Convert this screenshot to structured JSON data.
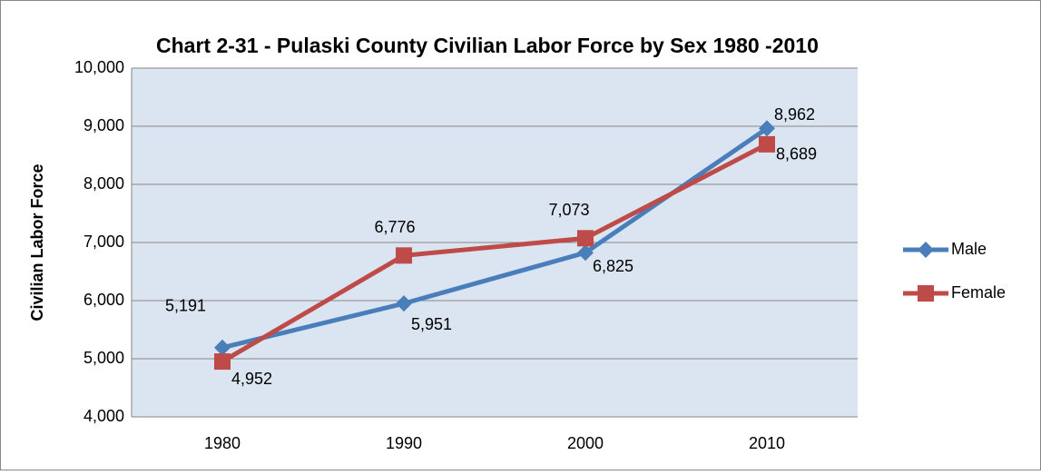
{
  "chart_data": {
    "type": "line",
    "title": "Chart 2-31 - Pulaski County Civilian Labor Force by Sex 1980 -2010",
    "y_label": "Civilian Labor Force",
    "categories": [
      "1980",
      "1990",
      "2000",
      "2010"
    ],
    "series": [
      {
        "name": "Male",
        "color": "#4a7ebb",
        "values": [
          5191,
          5951,
          6825,
          8962
        ],
        "value_labels": [
          "5,191",
          "5,951",
          "6,825",
          "8,962"
        ]
      },
      {
        "name": "Female",
        "color": "#be4b48",
        "values": [
          4952,
          6776,
          7073,
          8689
        ],
        "value_labels": [
          "4,952",
          "6,776",
          "7,073",
          "8,689"
        ]
      }
    ],
    "ylim": [
      4000,
      10000
    ],
    "yticks": [
      {
        "value": 4000,
        "label": "4,000"
      },
      {
        "value": 5000,
        "label": "5,000"
      },
      {
        "value": 6000,
        "label": "6,000"
      },
      {
        "value": 7000,
        "label": "7,000"
      },
      {
        "value": 8000,
        "label": "8,000"
      },
      {
        "value": 9000,
        "label": "9,000"
      },
      {
        "value": 10000,
        "label": "10,000"
      }
    ],
    "grid": true,
    "legend": "right"
  }
}
